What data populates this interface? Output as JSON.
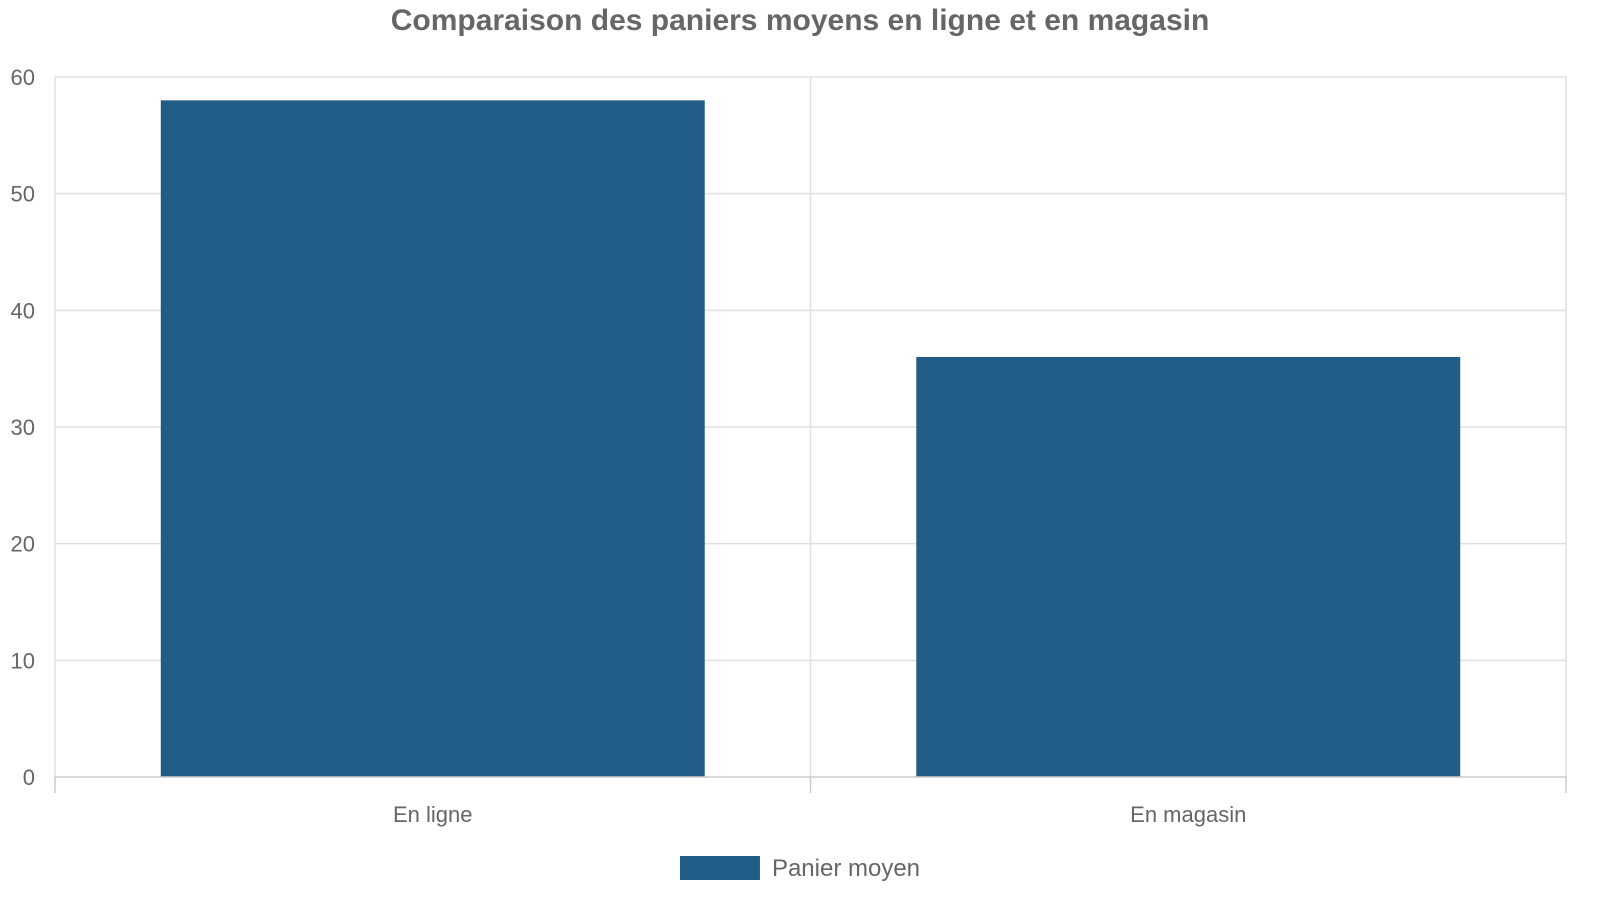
{
  "chart_data": {
    "type": "bar",
    "title": "Comparaison des paniers moyens en ligne et en magasin",
    "categories": [
      "En ligne",
      "En magasin"
    ],
    "series": [
      {
        "name": "Panier moyen",
        "values": [
          58,
          36
        ],
        "color": "#215d86"
      }
    ],
    "ylim": [
      0,
      60
    ],
    "yticks": [
      0,
      10,
      20,
      30,
      40,
      50,
      60
    ],
    "grid": true,
    "legend_position": "bottom-center"
  }
}
